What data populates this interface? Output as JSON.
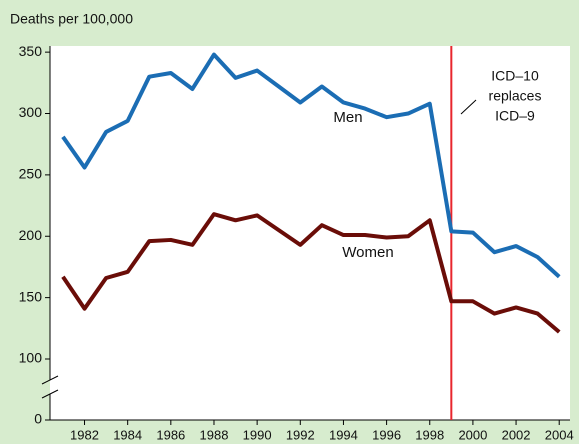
{
  "chart_data": {
    "type": "line",
    "y_label": "Deaths per 100,000",
    "x": [
      1981,
      1982,
      1983,
      1984,
      1985,
      1986,
      1987,
      1988,
      1989,
      1990,
      1991,
      1992,
      1993,
      1994,
      1995,
      1996,
      1997,
      1998,
      1999,
      2000,
      2001,
      2002,
      2003,
      2004
    ],
    "series": [
      {
        "name": "Men",
        "color": "#1b6db4",
        "values": [
          281,
          256,
          285,
          294,
          330,
          333,
          320,
          348,
          329,
          335,
          322,
          309,
          322,
          309,
          304,
          297,
          300,
          308,
          204,
          203,
          187,
          192,
          183,
          167
        ]
      },
      {
        "name": "Women",
        "color": "#6a0d08",
        "values": [
          167,
          141,
          166,
          171,
          196,
          197,
          193,
          218,
          213,
          217,
          205,
          193,
          209,
          201,
          201,
          199,
          200,
          213,
          147,
          147,
          137,
          142,
          137,
          122
        ]
      }
    ],
    "xlim": [
      1980.4,
      2004.5
    ],
    "xticks": [
      1982,
      1984,
      1986,
      1988,
      1990,
      1992,
      1994,
      1996,
      1998,
      2000,
      2002,
      2004
    ],
    "ylim": [
      0,
      355
    ],
    "yticks": [
      0,
      100,
      150,
      200,
      250,
      300,
      350
    ],
    "axis_break": true,
    "vline": {
      "x": 1999,
      "color": "#e8262d",
      "label": [
        "ICD–10",
        "replaces",
        "ICD–9"
      ]
    }
  }
}
